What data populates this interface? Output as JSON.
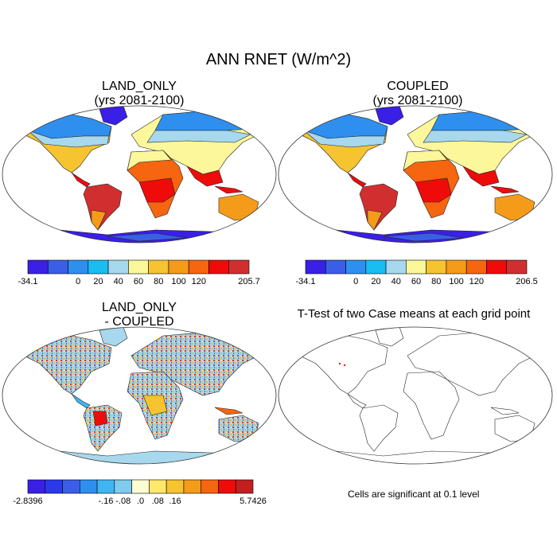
{
  "figure_title": "ANN RNET (W/m^2)",
  "panels": {
    "top_left": {
      "title_line1": "LAND_ONLY",
      "title_line2": "(yrs 2081-2100)"
    },
    "top_right": {
      "title_line1": "COUPLED",
      "title_line2": "(yrs 2081-2100)"
    },
    "bottom_left": {
      "title_line1": "LAND_ONLY",
      "title_line2": "- COUPLED"
    },
    "bottom_right": {
      "title": "T-Test of two Case means at each grid point",
      "note": "Cells are significant at 0.1 level"
    }
  },
  "colorbars": {
    "top_left": {
      "colors": [
        "#3a1fe6",
        "#3a5ee6",
        "#2f8fef",
        "#19bdf0",
        "#a8d8ee",
        "#fbf79a",
        "#f6c431",
        "#f59b1a",
        "#f6650f",
        "#f00b0b",
        "#d12f2f"
      ],
      "labels": [
        "-34.1",
        "0",
        "20",
        "40",
        "60",
        "80",
        "100",
        "120",
        "205.7"
      ]
    },
    "top_right": {
      "colors": [
        "#3a1fe6",
        "#3a5ee6",
        "#2f8fef",
        "#19bdf0",
        "#a8d8ee",
        "#fbf79a",
        "#f6c431",
        "#f59b1a",
        "#f6650f",
        "#f00b0b",
        "#d12f2f"
      ],
      "labels": [
        "-34.1",
        "0",
        "20",
        "40",
        "60",
        "80",
        "100",
        "120",
        "206.5"
      ]
    },
    "bottom_left": {
      "colors": [
        "#3a1fe6",
        "#2b39eb",
        "#3a5ee6",
        "#2f8fef",
        "#3fb6f2",
        "#7fcbee",
        "#fefcd2",
        "#fde86b",
        "#f6c431",
        "#f59b1a",
        "#f6650f",
        "#f00b0b",
        "#c41f1f"
      ],
      "labels": [
        "-2.8396",
        "-.16",
        "-.08",
        ".0",
        ".08",
        ".16",
        "5.7426"
      ]
    }
  }
}
